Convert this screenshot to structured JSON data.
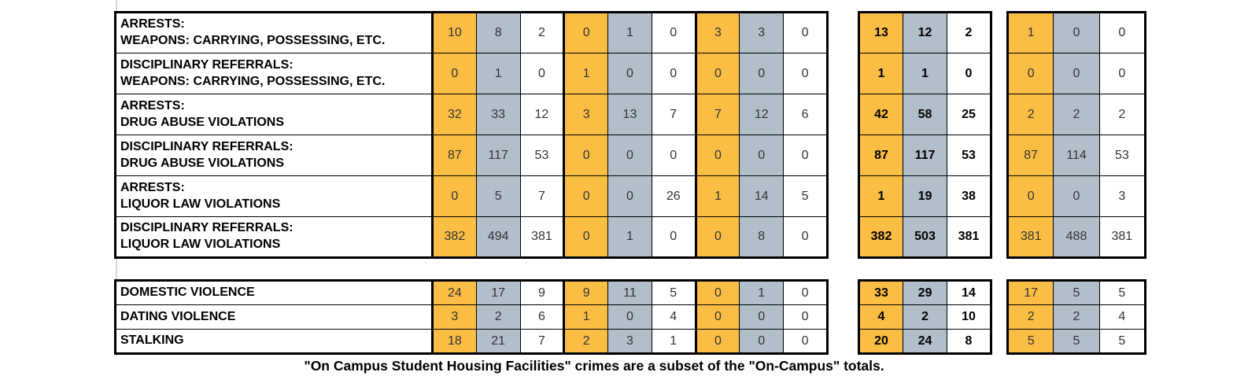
{
  "colors": {
    "orange": "#FBBE45",
    "slate": "#B3BECB",
    "cell_white": "#FFFFFF",
    "border": "#000000",
    "number_text": "#333333",
    "gridline": "#D9D9D9"
  },
  "footer_note": "\"On Campus Student Housing Facilities\" crimes are a subset of the \"On-Campus\" totals.",
  "tables": {
    "column_color_pattern": [
      "orange",
      "slate",
      "white"
    ],
    "sections": [
      {
        "name": "arrests-and-disciplinary-referrals",
        "rows": [
          {
            "label_lines": [
              "ARRESTS:",
              "WEAPONS: CARRYING, POSSESSING, ETC."
            ],
            "groups": [
              [
                10,
                8,
                2
              ],
              [
                0,
                1,
                0
              ],
              [
                3,
                3,
                0
              ]
            ],
            "totals": [
              13,
              12,
              2
            ],
            "student_housing": [
              1,
              0,
              0
            ]
          },
          {
            "label_lines": [
              "DISCIPLINARY REFERRALS:",
              "WEAPONS: CARRYING, POSSESSING, ETC."
            ],
            "groups": [
              [
                0,
                1,
                0
              ],
              [
                1,
                0,
                0
              ],
              [
                0,
                0,
                0
              ]
            ],
            "totals": [
              1,
              1,
              0
            ],
            "student_housing": [
              0,
              0,
              0
            ]
          },
          {
            "label_lines": [
              "ARRESTS:",
              "DRUG ABUSE VIOLATIONS"
            ],
            "groups": [
              [
                32,
                33,
                12
              ],
              [
                3,
                13,
                7
              ],
              [
                7,
                12,
                6
              ]
            ],
            "totals": [
              42,
              58,
              25
            ],
            "student_housing": [
              2,
              2,
              2
            ]
          },
          {
            "label_lines": [
              "DISCIPLINARY REFERRALS:",
              "DRUG ABUSE VIOLATIONS"
            ],
            "groups": [
              [
                87,
                117,
                53
              ],
              [
                0,
                0,
                0
              ],
              [
                0,
                0,
                0
              ]
            ],
            "totals": [
              87,
              117,
              53
            ],
            "student_housing": [
              87,
              114,
              53
            ]
          },
          {
            "label_lines": [
              "ARRESTS:",
              "LIQUOR LAW VIOLATIONS"
            ],
            "groups": [
              [
                0,
                5,
                7
              ],
              [
                0,
                0,
                26
              ],
              [
                1,
                14,
                5
              ]
            ],
            "totals": [
              1,
              19,
              38
            ],
            "student_housing": [
              0,
              0,
              3
            ]
          },
          {
            "label_lines": [
              "DISCIPLINARY REFERRALS:",
              "LIQUOR LAW VIOLATIONS"
            ],
            "groups": [
              [
                382,
                494,
                381
              ],
              [
                0,
                1,
                0
              ],
              [
                0,
                8,
                0
              ]
            ],
            "totals": [
              382,
              503,
              381
            ],
            "student_housing": [
              381,
              488,
              381
            ]
          }
        ]
      },
      {
        "name": "vawa-offenses",
        "rows": [
          {
            "label_lines": [
              "DOMESTIC VIOLENCE"
            ],
            "groups": [
              [
                24,
                17,
                9
              ],
              [
                9,
                11,
                5
              ],
              [
                0,
                1,
                0
              ]
            ],
            "totals": [
              33,
              29,
              14
            ],
            "student_housing": [
              17,
              5,
              5
            ]
          },
          {
            "label_lines": [
              "DATING VIOLENCE"
            ],
            "groups": [
              [
                3,
                2,
                6
              ],
              [
                1,
                0,
                4
              ],
              [
                0,
                0,
                0
              ]
            ],
            "totals": [
              4,
              2,
              10
            ],
            "student_housing": [
              2,
              2,
              4
            ]
          },
          {
            "label_lines": [
              "STALKING"
            ],
            "groups": [
              [
                18,
                21,
                7
              ],
              [
                2,
                3,
                1
              ],
              [
                0,
                0,
                0
              ]
            ],
            "totals": [
              20,
              24,
              8
            ],
            "student_housing": [
              5,
              5,
              5
            ]
          }
        ]
      }
    ]
  }
}
